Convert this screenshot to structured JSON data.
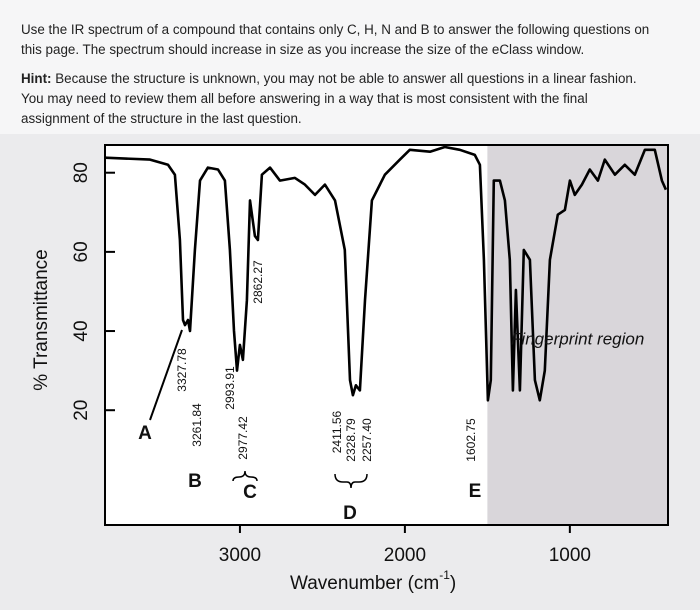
{
  "instructions": {
    "lines": [
      "Use the IR spectrum of a compound that contains only C, H, N and B to answer the following questions on",
      "this page.  The spectrum should increase in size as you increase the size of the eClass window."
    ],
    "hint_label": "Hint:",
    "hint_lines": [
      "Because the structure is unknown, you may not be able to answer all questions in a linear fashion.",
      "You may need to review them all before answering in a way that is most consistent with the final",
      "assignment of the structure in the last question."
    ]
  },
  "chart_data": {
    "type": "line",
    "x_label": [
      "Wavenumber (cm",
      "-1",
      ")"
    ],
    "y_label": "% Transmittance",
    "color": "#000000",
    "x": [
      3818,
      3545,
      3436,
      3394,
      3364,
      3345,
      3333,
      3315,
      3303,
      3273,
      3242,
      3194,
      3133,
      3091,
      3061,
      3036,
      3018,
      3000,
      2982,
      2958,
      2939,
      2909,
      2891,
      2867,
      2818,
      2758,
      2667,
      2606,
      2545,
      2485,
      2424,
      2364,
      2333,
      2315,
      2297,
      2273,
      2242,
      2200,
      2121,
      2030,
      1970,
      1848,
      1758,
      1667,
      1576,
      1545,
      1521,
      1497,
      1479,
      1461,
      1424,
      1394,
      1364,
      1345,
      1327,
      1303,
      1279,
      1242,
      1212,
      1182,
      1152,
      1121,
      1073,
      1030,
      1000,
      970,
      927,
      879,
      830,
      788,
      727,
      667,
      606,
      545,
      485,
      442,
      418
    ],
    "values": [
      83.8,
      83.3,
      82,
      79.5,
      63,
      42.8,
      41.5,
      42.8,
      40,
      60.5,
      78,
      81.3,
      80.8,
      78,
      60.5,
      40,
      30,
      36.5,
      32.7,
      47.8,
      73,
      64,
      63,
      79.5,
      81.3,
      78,
      78.7,
      77,
      74.4,
      77,
      73,
      60.5,
      27.6,
      23.8,
      26.3,
      25,
      47.8,
      73,
      79.5,
      83.3,
      85.8,
      85.3,
      86.5,
      85.8,
      84.5,
      82,
      58,
      22.5,
      27.6,
      78,
      78,
      73,
      58,
      25,
      50.4,
      25,
      60.5,
      58,
      27.6,
      22.5,
      30,
      58,
      69.4,
      70.6,
      78,
      74.4,
      77,
      80.8,
      78,
      83.3,
      79.5,
      82,
      79.5,
      85.8,
      85.8,
      78,
      75.7
    ],
    "xlim": [
      3818,
      405
    ],
    "ylim": [
      -9,
      87
    ],
    "xticks": [
      3000,
      2000,
      1000
    ],
    "yticks": [
      20,
      40,
      60,
      80
    ],
    "region": {
      "label": "Fingerprint region",
      "range": [
        1500,
        405
      ],
      "color": "#d9d6da"
    },
    "peak_labels": [
      "3327.78",
      "3261.84",
      "2993.91",
      "2977.42",
      "2862.27",
      "2411.56",
      "2328.79",
      "2257.40",
      "1602.75"
    ],
    "group_labels": [
      "A",
      "B",
      "C",
      "D",
      "E"
    ]
  }
}
